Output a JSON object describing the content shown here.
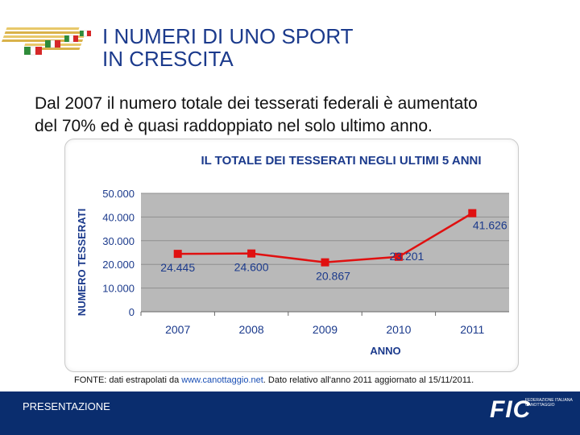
{
  "header": {
    "title_line1": "I NUMERI DI UNO SPORT",
    "title_line2": "IN CRESCITA"
  },
  "intro": {
    "line1": "Dal 2007 il numero totale dei tesserati federali è aumentato",
    "line2": "del 70% ed è quasi raddoppiato nel solo ultimo anno."
  },
  "source": {
    "prefix": "FONTE: dati estrapolati da ",
    "link": "www.canottaggio.net",
    "suffix": ". Dato relativo all'anno 2011 aggiornato al 15/11/2011."
  },
  "footer": {
    "label": "PRESENTAZIONE",
    "logo_text": "FIC",
    "logo_sub": "FEDERAZIONE ITALIANA CANOTTAGGIO"
  },
  "colors": {
    "title": "#1b3a8c",
    "line": "#e01010",
    "plot_bg": "#b9b9b9",
    "footer_bg": "#0a2d6e"
  },
  "chart_data": {
    "type": "line",
    "title": "IL TOTALE DEI TESSERATI NEGLI ULTIMI 5 ANNI",
    "xlabel": "ANNO",
    "ylabel": "NUMERO TESSERATI",
    "categories": [
      "2007",
      "2008",
      "2009",
      "2010",
      "2011"
    ],
    "values": [
      24445,
      24600,
      20867,
      23201,
      41626
    ],
    "data_labels": [
      "24.445",
      "24.600",
      "20.867",
      "23.201",
      "41.626"
    ],
    "yticks": [
      0,
      10000,
      20000,
      30000,
      40000,
      50000
    ],
    "ytick_labels": [
      "0",
      "10.000",
      "20.000",
      "30.000",
      "40.000",
      "50.000"
    ],
    "ylim": [
      0,
      50000
    ],
    "grid": true
  }
}
